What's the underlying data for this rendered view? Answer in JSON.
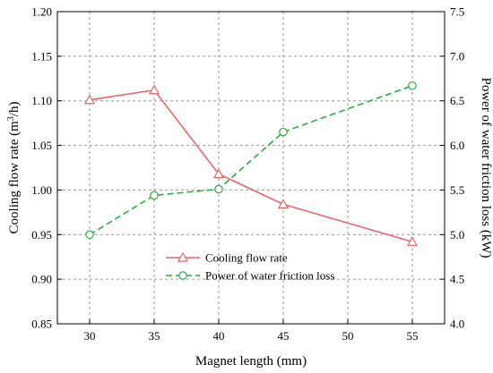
{
  "chart_data": {
    "type": "line",
    "xlabel": "Magnet length (mm)",
    "ylabel_left": "Cooling flow rate (m3/h)",
    "ylabel_left_parts": {
      "before": "Cooling flow rate (m",
      "sup": "3",
      "after": "/h)"
    },
    "ylabel_right": "Power of water friction loss (kW)",
    "x": [
      30,
      35,
      40,
      45,
      50,
      55
    ],
    "xlim": [
      27.5,
      57.5
    ],
    "ylim_left": [
      0.85,
      1.2
    ],
    "ylim_right": [
      4.0,
      7.5
    ],
    "x_ticks": [
      "30",
      "35",
      "40",
      "45",
      "50",
      "55"
    ],
    "y_ticks_left": [
      "0.85",
      "0.90",
      "0.95",
      "1.00",
      "1.05",
      "1.10",
      "1.15",
      "1.20"
    ],
    "y_ticks_right": [
      "4.0",
      "4.5",
      "5.0",
      "5.5",
      "6.0",
      "6.5",
      "7.0",
      "7.5"
    ],
    "grid": true,
    "legend_position": "bottom-center",
    "series": [
      {
        "name": "Cooling flow rate",
        "axis": "left",
        "color": "#e8676b",
        "line_style": "solid",
        "marker": "triangle",
        "points": [
          [
            30,
            1.101
          ],
          [
            35,
            1.112
          ],
          [
            40,
            1.018
          ],
          [
            45,
            0.984
          ],
          [
            55,
            0.942
          ]
        ]
      },
      {
        "name": "Power of water friction loss",
        "axis": "right",
        "color": "#27ae3f",
        "line_style": "dashed",
        "marker": "circle",
        "points": [
          [
            30,
            5.0
          ],
          [
            35,
            5.44
          ],
          [
            40,
            5.51
          ],
          [
            45,
            6.15
          ],
          [
            55,
            6.67
          ]
        ]
      }
    ]
  }
}
